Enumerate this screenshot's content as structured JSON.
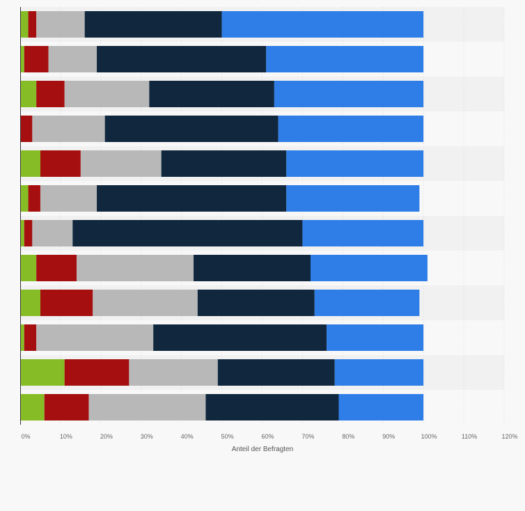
{
  "chart_data": {
    "type": "bar",
    "orientation": "horizontal",
    "stacked": true,
    "xlabel": "Anteil der Befragten",
    "xlim": [
      0,
      120
    ],
    "x_ticks": [
      "0%",
      "10%",
      "20%",
      "30%",
      "40%",
      "50%",
      "60%",
      "70%",
      "80%",
      "90%",
      "100%",
      "110%",
      "120%"
    ],
    "x_tick_values": [
      0,
      10,
      20,
      30,
      40,
      50,
      60,
      70,
      80,
      90,
      100,
      110,
      120
    ],
    "grid": true,
    "legend": "none",
    "row_count": 12,
    "series": [
      {
        "color": "#86bc25",
        "values": [
          2,
          1,
          4,
          0,
          5,
          2,
          1,
          4,
          5,
          1,
          11,
          6
        ]
      },
      {
        "color": "#a50f0f",
        "values": [
          2,
          6,
          7,
          3,
          10,
          3,
          2,
          10,
          13,
          3,
          16,
          11
        ]
      },
      {
        "color": "#b8b8b8",
        "values": [
          12,
          12,
          21,
          18,
          20,
          14,
          10,
          29,
          26,
          29,
          22,
          29
        ]
      },
      {
        "color": "#10273e",
        "values": [
          34,
          42,
          31,
          43,
          31,
          47,
          57,
          29,
          29,
          43,
          29,
          33
        ]
      },
      {
        "color": "#2f7ee8",
        "values": [
          50,
          39,
          37,
          36,
          34,
          33,
          30,
          29,
          26,
          24,
          22,
          21
        ]
      }
    ]
  }
}
